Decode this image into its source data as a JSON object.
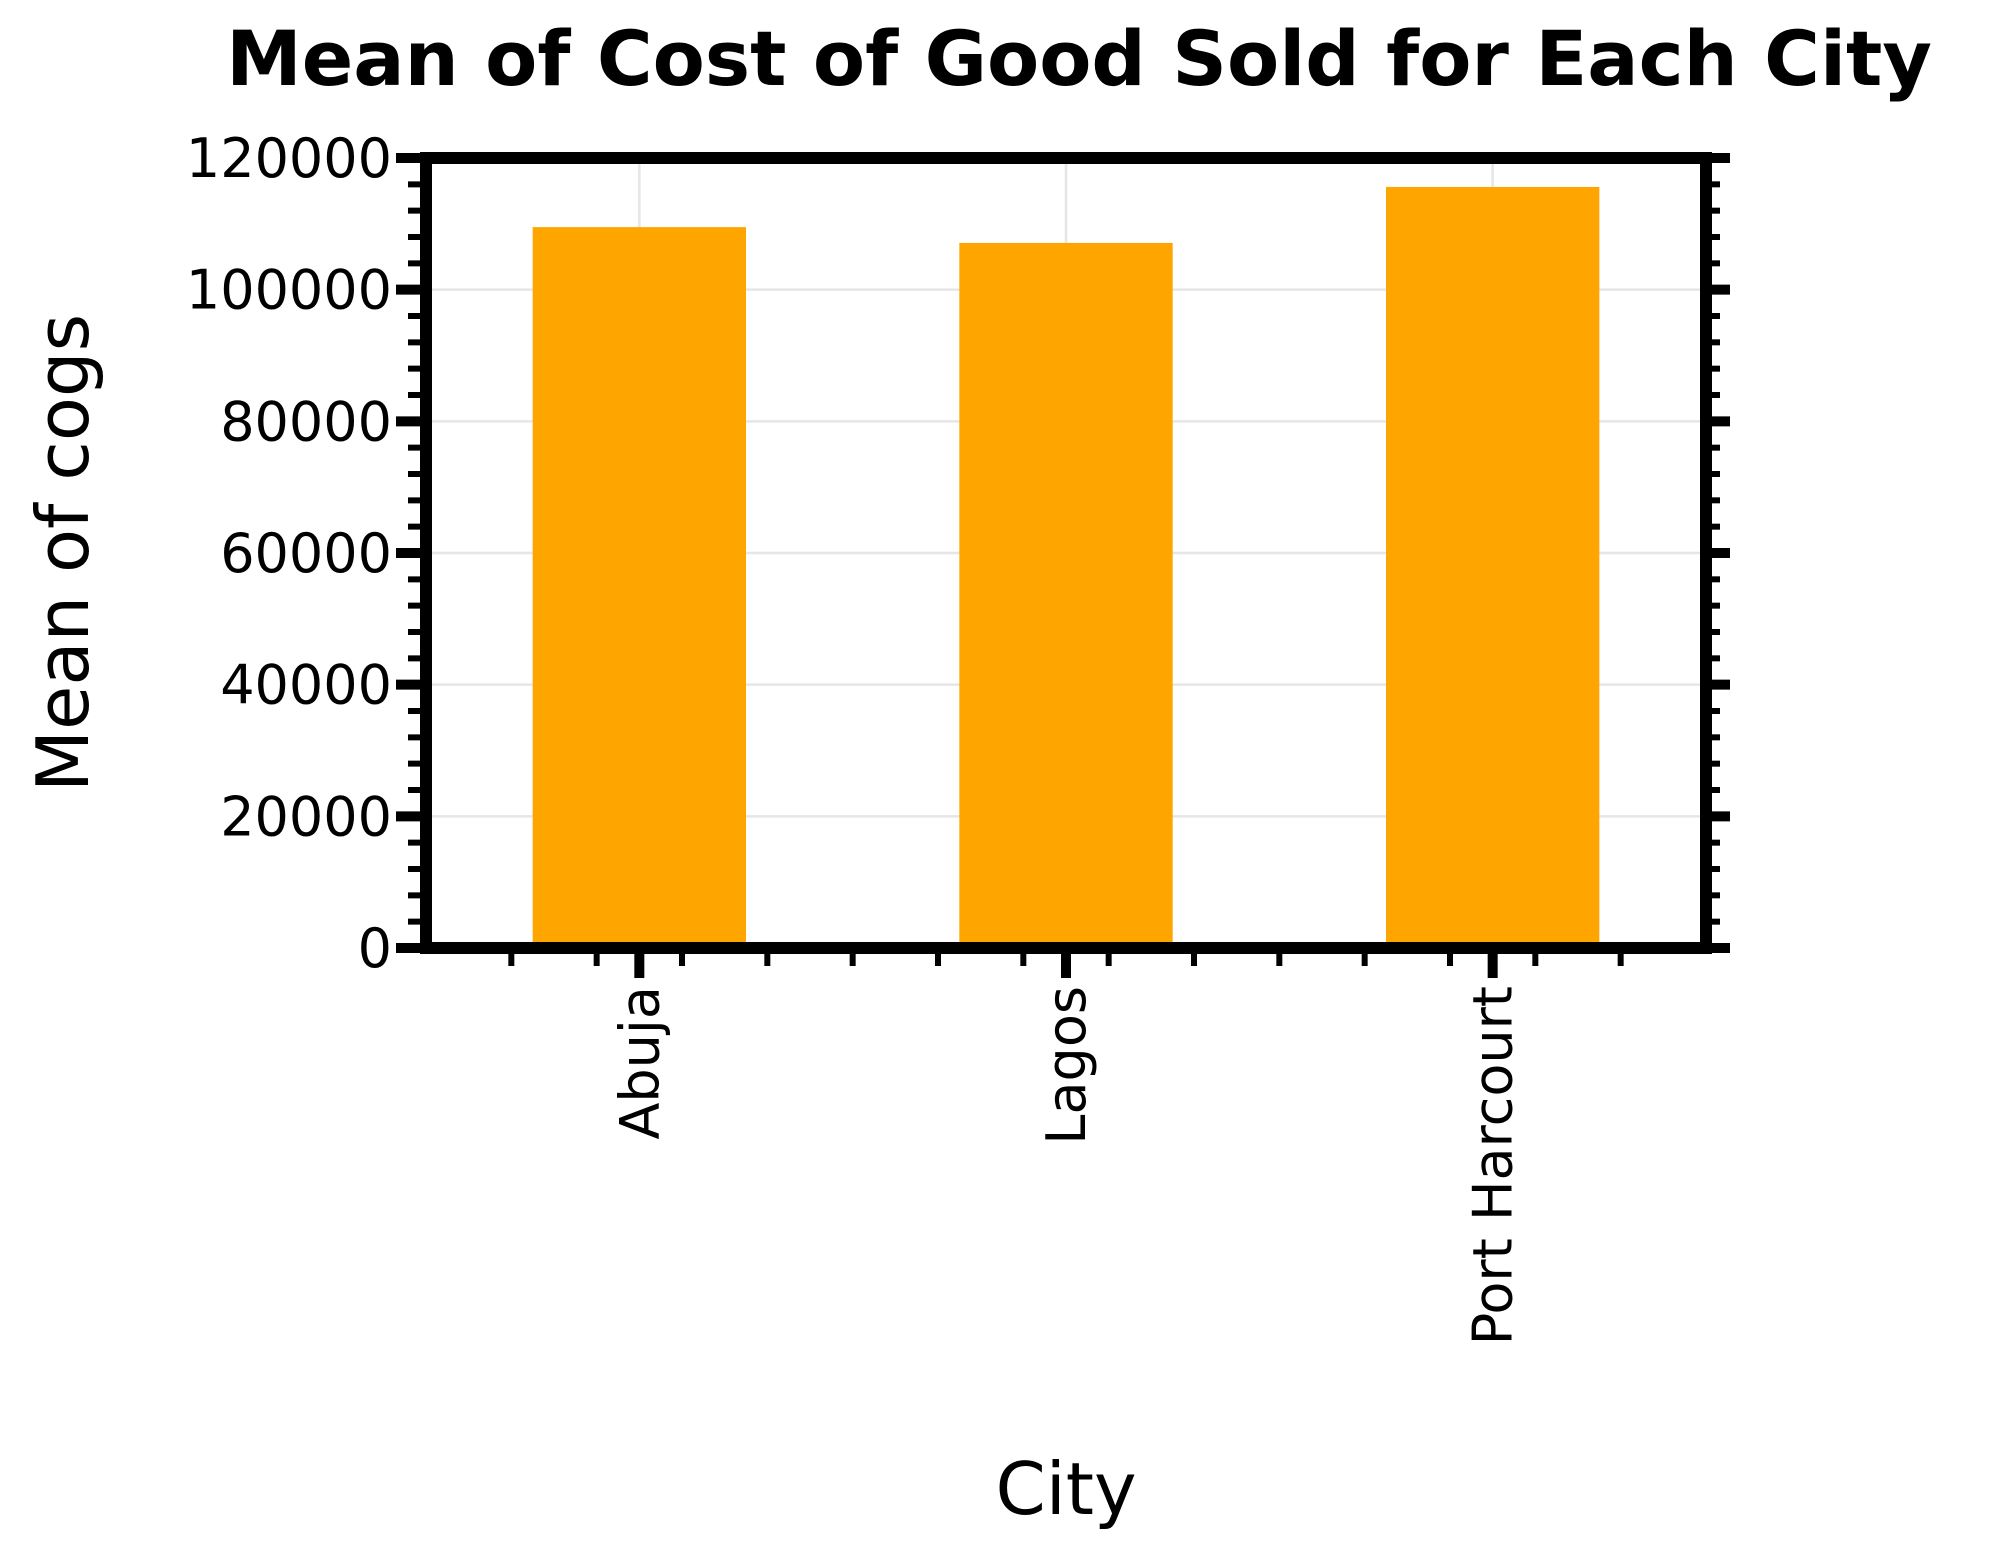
{
  "chart_data": {
    "type": "bar",
    "title": "Mean of Cost of Good Sold for Each City",
    "xlabel": "City",
    "ylabel": "Mean of cogs",
    "categories": [
      "Abuja",
      "Lagos",
      "Port Harcourt"
    ],
    "values": [
      109500,
      107100,
      115600
    ],
    "ylim": [
      0,
      120000
    ],
    "yticks": [
      0,
      20000,
      40000,
      60000,
      80000,
      100000,
      120000
    ],
    "ytick_labels": [
      "0",
      "20000",
      "40000",
      "60000",
      "80000",
      "100000",
      "120000"
    ],
    "grid": true,
    "legend": "none",
    "colors": {
      "bar": "#ffa500",
      "grid": "#e6e6e6",
      "axes": "#000000"
    }
  }
}
